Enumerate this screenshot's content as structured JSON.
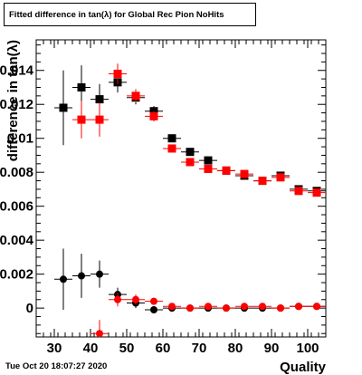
{
  "header": {
    "title": "Fitted difference in tan(λ) for Global Rec Pion NoHits"
  },
  "footer": {
    "timestamp": "Tue Oct 20 18:07:27 2020"
  },
  "chart_data": {
    "type": "scatter",
    "xlabel": "Quality",
    "ylabel": "difference in tan(λ)",
    "xlim": [
      25,
      105
    ],
    "ylim": [
      -0.0017,
      0.0158
    ],
    "xticks": [
      30,
      40,
      50,
      60,
      70,
      80,
      90,
      100
    ],
    "yticks": [
      0,
      0.002,
      0.004,
      0.006,
      0.008,
      0.01,
      0.012,
      0.014
    ],
    "ytick_labels": [
      "0",
      "0.002",
      "0.004",
      "0.006",
      "0.008",
      "0.01",
      "0.012",
      "0.014"
    ],
    "grid": false,
    "x_half_width": 2.5,
    "series": [
      {
        "marker": "square",
        "color": "#000000",
        "points": [
          {
            "x": 32.5,
            "y": 0.0118,
            "err": 0.0022
          },
          {
            "x": 37.5,
            "y": 0.013,
            "err": 0.0013
          },
          {
            "x": 42.5,
            "y": 0.0123,
            "err": 0.0009
          },
          {
            "x": 47.5,
            "y": 0.0133,
            "err": 0.0006
          },
          {
            "x": 52.5,
            "y": 0.0124,
            "err": 0.0004
          },
          {
            "x": 57.5,
            "y": 0.0116,
            "err": 0.0003
          },
          {
            "x": 62.5,
            "y": 0.01,
            "err": 0.0002
          },
          {
            "x": 67.5,
            "y": 0.0092,
            "err": 0.0002
          },
          {
            "x": 72.5,
            "y": 0.0087,
            "err": 0.0001
          },
          {
            "x": 77.5,
            "y": 0.0081,
            "err": 0.0001
          },
          {
            "x": 82.5,
            "y": 0.0078,
            "err": 0.0001
          },
          {
            "x": 87.5,
            "y": 0.0075,
            "err": 0.0001
          },
          {
            "x": 92.5,
            "y": 0.0078,
            "err": 0.0001
          },
          {
            "x": 97.5,
            "y": 0.007,
            "err": 0.0001
          },
          {
            "x": 102.5,
            "y": 0.0069,
            "err": 0.0001
          }
        ]
      },
      {
        "marker": "square",
        "color": "#ff0000",
        "points": [
          {
            "x": 37.5,
            "y": 0.0111,
            "err": 0.0011
          },
          {
            "x": 42.5,
            "y": 0.0111,
            "err": 0.001
          },
          {
            "x": 47.5,
            "y": 0.0138,
            "err": 0.0006
          },
          {
            "x": 52.5,
            "y": 0.0125,
            "err": 0.0004
          },
          {
            "x": 57.5,
            "y": 0.0113,
            "err": 0.0003
          },
          {
            "x": 62.5,
            "y": 0.0094,
            "err": 0.0002
          },
          {
            "x": 67.5,
            "y": 0.0086,
            "err": 0.0002
          },
          {
            "x": 72.5,
            "y": 0.0082,
            "err": 0.0001
          },
          {
            "x": 77.5,
            "y": 0.0081,
            "err": 0.0001
          },
          {
            "x": 82.5,
            "y": 0.0079,
            "err": 0.0001
          },
          {
            "x": 87.5,
            "y": 0.0075,
            "err": 0.0001
          },
          {
            "x": 92.5,
            "y": 0.0077,
            "err": 0.0001
          },
          {
            "x": 97.5,
            "y": 0.0069,
            "err": 0.0001
          },
          {
            "x": 102.5,
            "y": 0.0068,
            "err": 0.0001
          }
        ]
      },
      {
        "marker": "circle",
        "color": "#000000",
        "points": [
          {
            "x": 32.5,
            "y": 0.0017,
            "err": 0.0018
          },
          {
            "x": 37.5,
            "y": 0.0019,
            "err": 0.0013
          },
          {
            "x": 42.5,
            "y": 0.002,
            "err": 0.0008
          },
          {
            "x": 47.5,
            "y": 0.0008,
            "err": 0.0004
          },
          {
            "x": 52.5,
            "y": 0.0003,
            "err": 0.0003
          },
          {
            "x": 57.5,
            "y": -0.0001,
            "err": 0.0002
          },
          {
            "x": 62.5,
            "y": 0.0,
            "err": 0.0002
          },
          {
            "x": 67.5,
            "y": 0.0,
            "err": 0.0001
          },
          {
            "x": 72.5,
            "y": 0.0,
            "err": 0.0001
          },
          {
            "x": 77.5,
            "y": 0.0,
            "err": 0.0001
          },
          {
            "x": 82.5,
            "y": 0.0,
            "err": 0.0001
          },
          {
            "x": 87.5,
            "y": 0.0,
            "err": 0.0001
          },
          {
            "x": 92.5,
            "y": 0.0,
            "err": 0.0001
          },
          {
            "x": 97.5,
            "y": 0.0001,
            "err": 0.0001
          },
          {
            "x": 102.5,
            "y": 0.0001,
            "err": 0.0001
          }
        ]
      },
      {
        "marker": "circle",
        "color": "#ff0000",
        "points": [
          {
            "x": 42.5,
            "y": -0.0015,
            "err": 0.0008
          },
          {
            "x": 47.5,
            "y": 0.0005,
            "err": 0.0004
          },
          {
            "x": 52.5,
            "y": 0.0005,
            "err": 0.0003
          },
          {
            "x": 57.5,
            "y": 0.0004,
            "err": 0.0002
          },
          {
            "x": 62.5,
            "y": 0.0001,
            "err": 0.0002
          },
          {
            "x": 67.5,
            "y": 0.0,
            "err": 0.0001
          },
          {
            "x": 72.5,
            "y": 0.0001,
            "err": 0.0001
          },
          {
            "x": 77.5,
            "y": 0.0,
            "err": 0.0001
          },
          {
            "x": 82.5,
            "y": 0.0001,
            "err": 0.0001
          },
          {
            "x": 87.5,
            "y": 0.0001,
            "err": 0.0001
          },
          {
            "x": 92.5,
            "y": 0.0,
            "err": 0.0001
          },
          {
            "x": 97.5,
            "y": 0.0001,
            "err": 0.0001
          },
          {
            "x": 102.5,
            "y": 0.0001,
            "err": 0.0001
          }
        ]
      }
    ]
  }
}
